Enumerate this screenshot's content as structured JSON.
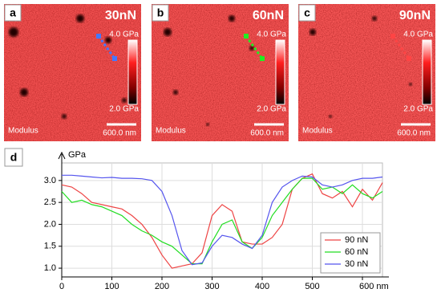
{
  "panels": [
    {
      "label": "a",
      "force": "30nN",
      "scale_max": "4.0 GPa",
      "scale_min": "2.0 GPa",
      "channel": "Modulus",
      "scale_bar": "600.0 nm"
    },
    {
      "label": "b",
      "force": "60nN",
      "scale_max": "4.0 GPa",
      "scale_min": "2.0 GPa",
      "channel": "Modulus",
      "scale_bar": "600.0 nm"
    },
    {
      "label": "c",
      "force": "90nN",
      "scale_max": "4.0 GPa",
      "scale_min": "2.0 GPa",
      "channel": "Modulus",
      "scale_bar": "600.0 nm"
    }
  ],
  "chart_data": {
    "type": "line",
    "panel_label": "d",
    "y_label": "GPa",
    "x": [
      0,
      20,
      40,
      60,
      80,
      100,
      120,
      140,
      160,
      180,
      200,
      220,
      240,
      260,
      280,
      300,
      320,
      340,
      360,
      380,
      400,
      420,
      440,
      460,
      480,
      500,
      520,
      540,
      560,
      580,
      600,
      620,
      640
    ],
    "series": [
      {
        "name": "90 nN",
        "color": "#ee4444",
        "values": [
          2.9,
          2.85,
          2.7,
          2.5,
          2.45,
          2.4,
          2.35,
          2.2,
          2.0,
          1.7,
          1.3,
          1.0,
          1.05,
          1.1,
          1.35,
          2.2,
          2.45,
          2.3,
          1.6,
          1.55,
          1.55,
          1.7,
          2.0,
          2.8,
          3.05,
          3.15,
          2.7,
          2.6,
          2.75,
          2.4,
          2.8,
          2.55,
          2.95
        ]
      },
      {
        "name": "60 nN",
        "color": "#22dd22",
        "values": [
          2.75,
          2.5,
          2.55,
          2.45,
          2.4,
          2.3,
          2.2,
          2.0,
          1.85,
          1.75,
          1.6,
          1.5,
          1.3,
          1.1,
          1.1,
          1.6,
          2.0,
          2.1,
          1.6,
          1.45,
          1.7,
          2.2,
          2.5,
          2.8,
          3.05,
          3.05,
          2.8,
          2.85,
          2.7,
          2.9,
          2.7,
          2.6,
          2.75
        ]
      },
      {
        "name": "30 nN",
        "color": "#5555ee",
        "values": [
          3.12,
          3.12,
          3.1,
          3.08,
          3.06,
          3.07,
          3.05,
          3.05,
          3.04,
          3.0,
          2.75,
          2.2,
          1.4,
          1.08,
          1.12,
          1.5,
          1.75,
          1.7,
          1.55,
          1.45,
          1.75,
          2.5,
          2.85,
          3.0,
          3.1,
          3.08,
          2.9,
          2.85,
          2.9,
          3.0,
          3.05,
          3.05,
          3.08
        ]
      }
    ],
    "xlim": [
      0,
      640
    ],
    "ylim": [
      0.8,
      3.4
    ],
    "xticks": [
      0,
      100,
      200,
      300,
      400,
      500,
      {
        "value": 600,
        "label": "600 nm"
      }
    ],
    "yticks": [
      {
        "value": 1,
        "label": "1.0"
      },
      1.5,
      {
        "value": 2,
        "label": "2.0"
      },
      2.5,
      {
        "value": 3,
        "label": "3.0"
      }
    ],
    "grid": true
  }
}
